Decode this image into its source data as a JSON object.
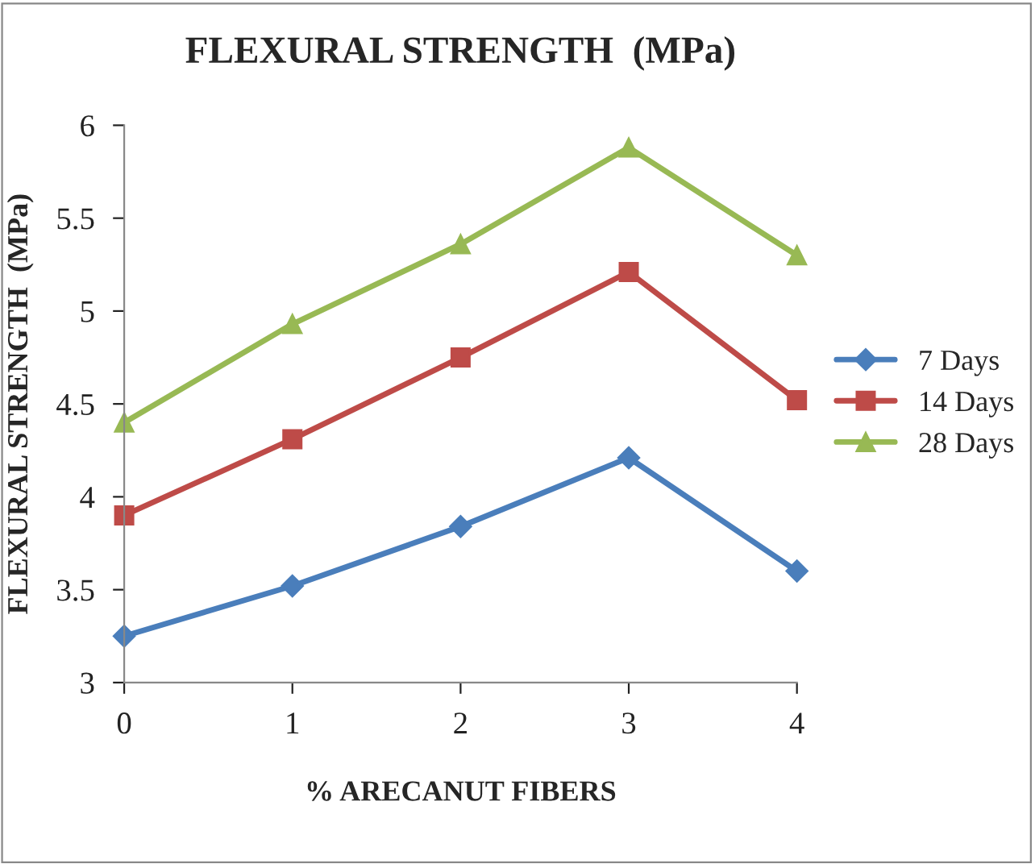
{
  "chart_data": {
    "type": "line",
    "title": "FLEXURAL STRENGTH  (MPa)",
    "xlabel": "% ARECANUT FIBERS",
    "ylabel": "FLEXURAL STRENGTH  (MPa)",
    "x": [
      0,
      1,
      2,
      3,
      4
    ],
    "xlim": [
      0,
      4
    ],
    "xticks": [
      0,
      1,
      2,
      3,
      4
    ],
    "ylim": [
      3,
      6
    ],
    "yticks": [
      3,
      {
        "value": 3.5,
        "label": "3.5"
      },
      4,
      {
        "value": 4.5,
        "label": "4.5"
      },
      5,
      {
        "value": 5.5,
        "label": "5.5"
      },
      6
    ],
    "series": [
      {
        "name": "7 Days",
        "color": "#4a7ebb",
        "marker": "diamond",
        "values": [
          3.25,
          3.52,
          3.84,
          4.21,
          3.6
        ]
      },
      {
        "name": "14 Days",
        "color": "#be4b48",
        "marker": "square",
        "values": [
          3.9,
          4.31,
          4.75,
          5.21,
          4.52
        ]
      },
      {
        "name": "28 Days",
        "color": "#98b954",
        "marker": "triangle",
        "values": [
          4.4,
          4.93,
          5.36,
          5.88,
          5.3
        ]
      }
    ],
    "grid": false,
    "legend": "right",
    "line_style": "solid"
  }
}
